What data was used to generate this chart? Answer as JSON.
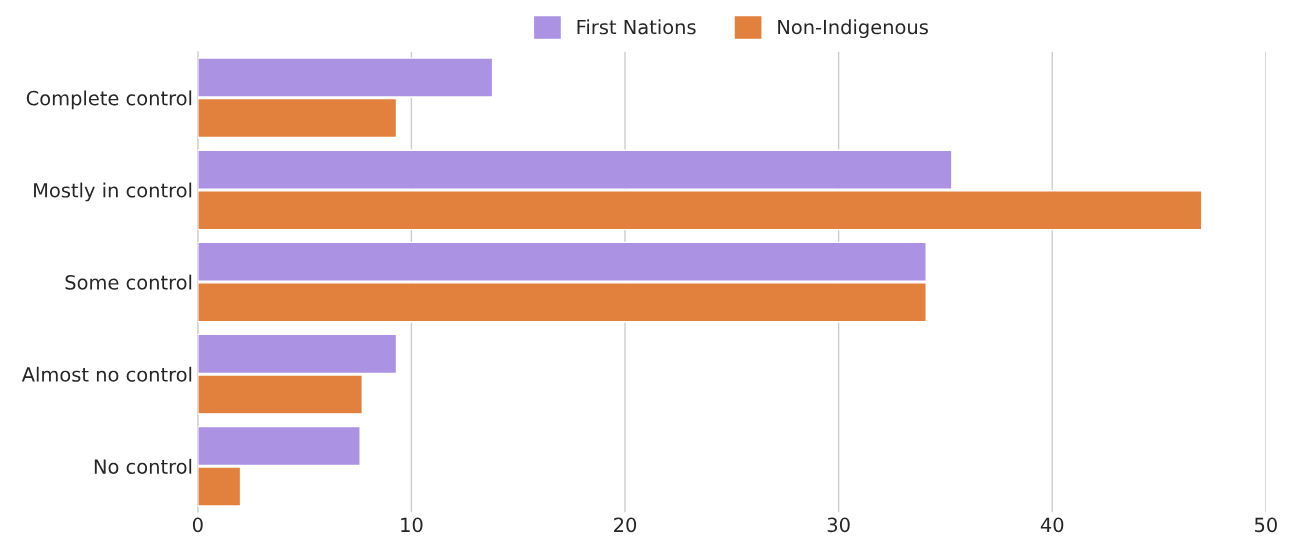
{
  "chart_data": {
    "type": "bar",
    "orientation": "horizontal",
    "categories": [
      "Complete control",
      "Mostly in control",
      "Some control",
      "Almost no control",
      "No control"
    ],
    "series": [
      {
        "name": "First Nations",
        "color": "#ab92e2",
        "values": [
          13.8,
          35.3,
          34.1,
          9.3,
          7.6
        ]
      },
      {
        "name": "Non-Indigenous",
        "color": "#e2803e",
        "values": [
          9.3,
          47.0,
          34.1,
          7.7,
          2.0
        ]
      }
    ],
    "xlim": [
      0,
      50
    ],
    "xticks": [
      0,
      10,
      20,
      30,
      40,
      50
    ],
    "grid": "x",
    "legend": "top"
  }
}
